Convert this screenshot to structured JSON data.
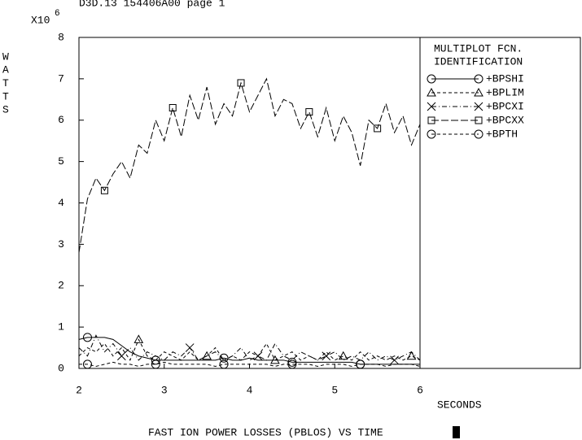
{
  "chart_data": {
    "type": "line",
    "header": "D3D.13 154406A00 page 1",
    "scale_label": "X10",
    "scale_exponent": "6",
    "y_label": "WATTS",
    "x_label": "SECONDS",
    "title": "FAST ION POWER LOSSES (PBLOS) VS TIME",
    "legend_title": [
      "MULTIPLOT FCN.",
      "IDENTIFICATION"
    ],
    "xlim": [
      2,
      6
    ],
    "ylim": [
      0,
      8
    ],
    "xticks": [
      2,
      3,
      4,
      5,
      6
    ],
    "yticks": [
      0,
      1,
      2,
      3,
      4,
      5,
      6,
      7,
      8
    ],
    "x": [
      2.0,
      2.1,
      2.2,
      2.3,
      2.4,
      2.5,
      2.6,
      2.7,
      2.8,
      2.9,
      3.0,
      3.1,
      3.2,
      3.3,
      3.4,
      3.5,
      3.6,
      3.7,
      3.8,
      3.9,
      4.0,
      4.1,
      4.2,
      4.3,
      4.4,
      4.5,
      4.6,
      4.7,
      4.8,
      4.9,
      5.0,
      5.1,
      5.2,
      5.3,
      5.4,
      5.5,
      5.6,
      5.7,
      5.8,
      5.9,
      6.0
    ],
    "series": [
      {
        "name": "+BPSHI",
        "color": "#000000",
        "marker": "circle",
        "linestyle": "solid",
        "values": [
          0.7,
          0.75,
          0.75,
          0.75,
          0.7,
          0.55,
          0.4,
          0.3,
          0.25,
          0.2,
          0.2,
          0.2,
          0.2,
          0.2,
          0.2,
          0.2,
          0.2,
          0.25,
          0.2,
          0.2,
          0.25,
          0.2,
          0.2,
          0.2,
          0.2,
          0.15,
          0.15,
          0.15,
          0.15,
          0.15,
          0.15,
          0.15,
          0.15,
          0.1,
          0.1,
          0.1,
          0.1,
          0.1,
          0.1,
          0.1,
          0.1
        ]
      },
      {
        "name": "+BPLIM",
        "color": "#000000",
        "marker": "triangle",
        "linestyle": "dashed",
        "values": [
          0.3,
          0.5,
          0.4,
          0.6,
          0.3,
          0.5,
          0.2,
          0.7,
          0.3,
          0.2,
          0.4,
          0.3,
          0.2,
          0.4,
          0.2,
          0.3,
          0.5,
          0.2,
          0.3,
          0.2,
          0.4,
          0.3,
          0.6,
          0.2,
          0.3,
          0.4,
          0.2,
          0.3,
          0.2,
          0.4,
          0.2,
          0.3,
          0.2,
          0.4,
          0.2,
          0.3,
          0.2,
          0.3,
          0.2,
          0.3,
          0.2
        ]
      },
      {
        "name": "+BPCXI",
        "color": "#000000",
        "marker": "x",
        "linestyle": "dashdot",
        "values": [
          0.5,
          0.3,
          0.8,
          0.4,
          0.6,
          0.3,
          0.5,
          0.2,
          0.4,
          0.3,
          0.2,
          0.4,
          0.3,
          0.5,
          0.2,
          0.3,
          0.4,
          0.2,
          0.3,
          0.5,
          0.2,
          0.3,
          0.2,
          0.6,
          0.3,
          0.2,
          0.4,
          0.3,
          0.2,
          0.3,
          0.4,
          0.2,
          0.3,
          0.2,
          0.4,
          0.2,
          0.3,
          0.2,
          0.3,
          0.4,
          0.2
        ]
      },
      {
        "name": "+BPCXX",
        "color": "#000000",
        "marker": "square",
        "linestyle": "longdash",
        "values": [
          2.8,
          4.1,
          4.6,
          4.3,
          4.7,
          5.0,
          4.6,
          5.4,
          5.2,
          6.0,
          5.5,
          6.3,
          5.6,
          6.6,
          6.0,
          6.8,
          5.9,
          6.4,
          6.1,
          6.9,
          6.2,
          6.6,
          7.0,
          6.1,
          6.5,
          6.4,
          5.8,
          6.2,
          5.6,
          6.3,
          5.5,
          6.1,
          5.7,
          4.9,
          6.0,
          5.8,
          6.4,
          5.7,
          6.1,
          5.4,
          5.9
        ]
      },
      {
        "name": "+BPTH",
        "color": "#000000",
        "marker": "circle",
        "linestyle": "dashed",
        "values": [
          0.1,
          0.1,
          0.05,
          0.1,
          0.15,
          0.1,
          0.1,
          0.05,
          0.1,
          0.1,
          0.15,
          0.1,
          0.1,
          0.1,
          0.1,
          0.1,
          0.05,
          0.1,
          0.1,
          0.1,
          0.1,
          0.1,
          0.1,
          0.05,
          0.1,
          0.1,
          0.1,
          0.1,
          0.05,
          0.1,
          0.1,
          0.1,
          0.05,
          0.1,
          0.1,
          0.1,
          0.05,
          0.1,
          0.1,
          0.1,
          0.05
        ]
      }
    ]
  }
}
